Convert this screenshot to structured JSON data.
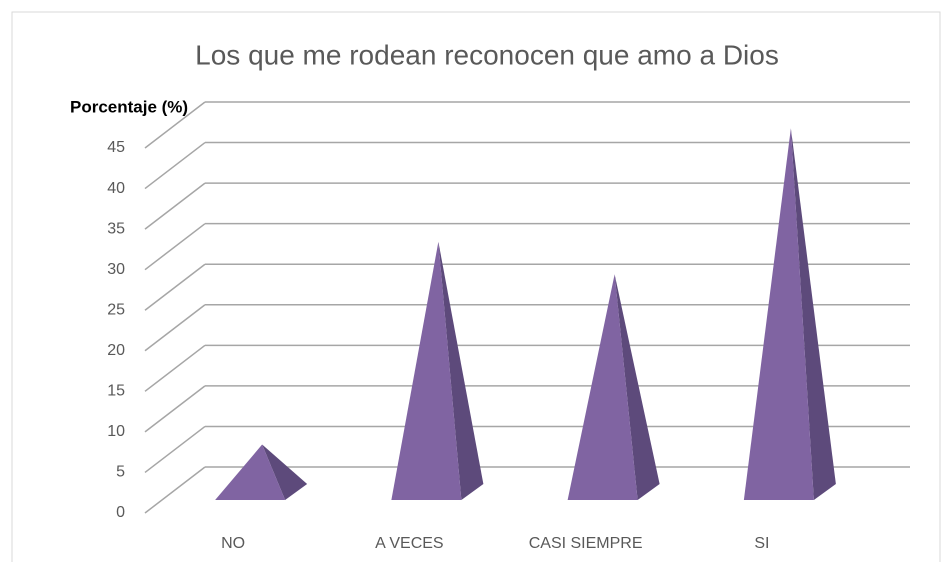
{
  "chart_data": {
    "type": "pyramid3d",
    "title": "Los que me rodean reconocen que amo a Dios",
    "y_label": "Porcentaje (%)",
    "categories": [
      "NO",
      "A VECES",
      "CASI SIEMPRE",
      "SI"
    ],
    "values": [
      4,
      29,
      25,
      43
    ],
    "color": "#8064a2",
    "side_color": "#5d4a7b",
    "ylim": [
      0,
      45
    ],
    "yticks": [
      0,
      5,
      10,
      15,
      20,
      25,
      30,
      35,
      40,
      45
    ],
    "grid": true
  }
}
